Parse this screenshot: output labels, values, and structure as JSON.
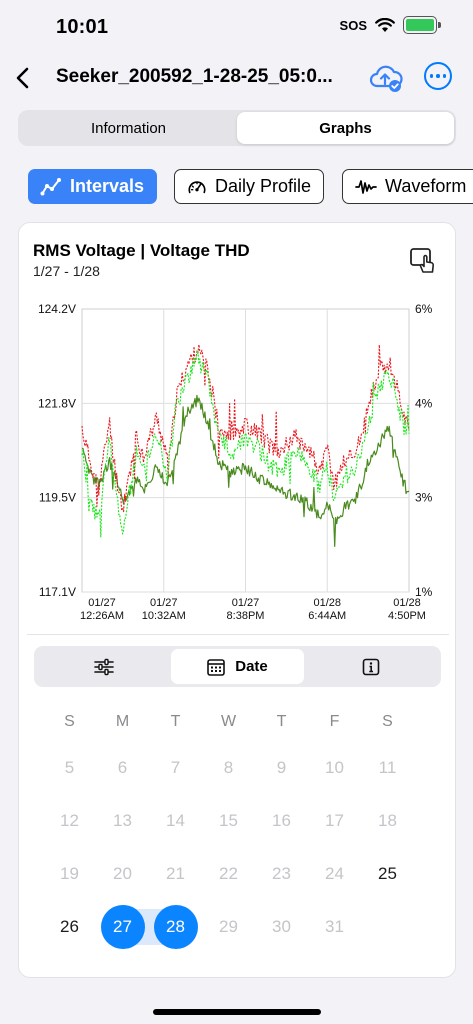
{
  "status": {
    "time": "10:01",
    "sos": "SOS"
  },
  "nav": {
    "title": "Seeker_200592_1-28-25_05:0..."
  },
  "segments": [
    {
      "label": "Information",
      "active": false
    },
    {
      "label": "Graphs",
      "active": true
    }
  ],
  "chips": [
    {
      "label": "Intervals",
      "active": true
    },
    {
      "label": "Daily Profile",
      "active": false
    },
    {
      "label": "Waveform",
      "active": false
    }
  ],
  "card": {
    "title": "RMS Voltage | Voltage THD",
    "subtitle": "1/27 - 1/28"
  },
  "chart_data": {
    "type": "line",
    "title": "RMS Voltage | Voltage THD",
    "subtitle": "1/27 - 1/28",
    "y_left_ticks": [
      "124.2V",
      "121.8V",
      "119.5V",
      "117.1V"
    ],
    "y_right_ticks": [
      "6%",
      "4%",
      "3%",
      "1%"
    ],
    "ylim_left": [
      117.1,
      124.2
    ],
    "ylim_right": [
      1,
      6
    ],
    "x_ticks": [
      {
        "line1": "01/27",
        "line2": "12:26AM"
      },
      {
        "line1": "01/27",
        "line2": "10:32AM"
      },
      {
        "line1": "01/27",
        "line2": "8:38PM"
      },
      {
        "line1": "01/28",
        "line2": "6:44AM"
      },
      {
        "line1": "01/28",
        "line2": "4:50PM"
      }
    ],
    "grid": true,
    "series_colors": {
      "red": "#e8151b",
      "bright_green": "#19e619",
      "olive": "#4a8a1e"
    },
    "series": [
      {
        "name": "",
        "color": "red",
        "axis": "left",
        "keypoints": [
          [
            0,
            121.2
          ],
          [
            2,
            120.5
          ],
          [
            5,
            119.7
          ],
          [
            8,
            121.4
          ],
          [
            10,
            120.0
          ],
          [
            12,
            119.2
          ],
          [
            16,
            121.0
          ],
          [
            18,
            120.5
          ],
          [
            22,
            121.5
          ],
          [
            25,
            120.4
          ],
          [
            28,
            122.1
          ],
          [
            31,
            122.8
          ],
          [
            34,
            123.2
          ],
          [
            37,
            122.6
          ],
          [
            40,
            121.3
          ],
          [
            44,
            121.0
          ],
          [
            48,
            121.3
          ],
          [
            52,
            121.1
          ],
          [
            55,
            120.8
          ],
          [
            58,
            120.6
          ],
          [
            62,
            121.0
          ],
          [
            66,
            120.8
          ],
          [
            70,
            120.1
          ],
          [
            72,
            120.7
          ],
          [
            74,
            119.8
          ],
          [
            77,
            120.4
          ],
          [
            80,
            120.6
          ],
          [
            82,
            121.0
          ],
          [
            84,
            121.7
          ],
          [
            87,
            122.6
          ],
          [
            90,
            122.9
          ],
          [
            92,
            122.4
          ],
          [
            94,
            121.7
          ],
          [
            96,
            121.2
          ]
        ]
      },
      {
        "name": "",
        "color": "bright_green",
        "axis": "left",
        "keypoints": [
          [
            0,
            120.7
          ],
          [
            2,
            119.3
          ],
          [
            5,
            119.0
          ],
          [
            8,
            120.9
          ],
          [
            10,
            119.6
          ],
          [
            12,
            118.6
          ],
          [
            16,
            120.6
          ],
          [
            18,
            120.1
          ],
          [
            22,
            121.1
          ],
          [
            25,
            120.1
          ],
          [
            28,
            121.8
          ],
          [
            31,
            122.5
          ],
          [
            34,
            123.0
          ],
          [
            37,
            122.4
          ],
          [
            40,
            121.0
          ],
          [
            44,
            120.6
          ],
          [
            48,
            121.0
          ],
          [
            52,
            120.7
          ],
          [
            55,
            120.3
          ],
          [
            58,
            120.1
          ],
          [
            62,
            120.6
          ],
          [
            66,
            120.4
          ],
          [
            70,
            119.7
          ],
          [
            72,
            120.3
          ],
          [
            74,
            119.4
          ],
          [
            77,
            120.0
          ],
          [
            80,
            120.2
          ],
          [
            82,
            120.6
          ],
          [
            84,
            121.3
          ],
          [
            87,
            122.2
          ],
          [
            90,
            122.6
          ],
          [
            92,
            122.1
          ],
          [
            94,
            121.4
          ],
          [
            96,
            120.9
          ]
        ]
      },
      {
        "name": "",
        "color": "olive",
        "axis": "right",
        "keypoints": [
          [
            0,
            3.5
          ],
          [
            2,
            3.1
          ],
          [
            5,
            2.9
          ],
          [
            8,
            3.3
          ],
          [
            10,
            3.0
          ],
          [
            12,
            2.6
          ],
          [
            16,
            3.0
          ],
          [
            18,
            2.8
          ],
          [
            22,
            3.2
          ],
          [
            25,
            2.9
          ],
          [
            28,
            3.5
          ],
          [
            31,
            4.2
          ],
          [
            34,
            4.4
          ],
          [
            37,
            4.0
          ],
          [
            40,
            3.3
          ],
          [
            44,
            3.1
          ],
          [
            48,
            3.2
          ],
          [
            52,
            3.0
          ],
          [
            55,
            2.9
          ],
          [
            58,
            2.8
          ],
          [
            62,
            2.7
          ],
          [
            66,
            2.6
          ],
          [
            70,
            2.3
          ],
          [
            72,
            2.6
          ],
          [
            74,
            2.2
          ],
          [
            77,
            2.5
          ],
          [
            80,
            2.6
          ],
          [
            82,
            2.9
          ],
          [
            84,
            3.3
          ],
          [
            87,
            3.6
          ],
          [
            90,
            3.9
          ],
          [
            92,
            3.5
          ],
          [
            94,
            3.0
          ],
          [
            96,
            2.7
          ]
        ]
      }
    ]
  },
  "tools": [
    {
      "icon": "sliders-icon",
      "label": "",
      "active": false
    },
    {
      "icon": "calendar-icon",
      "label": "Date",
      "active": true
    },
    {
      "icon": "info-icon",
      "label": "",
      "active": false
    }
  ],
  "calendar": {
    "weekdays": [
      "S",
      "M",
      "T",
      "W",
      "T",
      "F",
      "S"
    ],
    "weeks": [
      [
        {
          "d": "5",
          "s": "disabled"
        },
        {
          "d": "6",
          "s": "disabled"
        },
        {
          "d": "7",
          "s": "disabled"
        },
        {
          "d": "8",
          "s": "disabled"
        },
        {
          "d": "9",
          "s": "disabled"
        },
        {
          "d": "10",
          "s": "disabled"
        },
        {
          "d": "11",
          "s": "disabled"
        }
      ],
      [
        {
          "d": "12",
          "s": "disabled"
        },
        {
          "d": "13",
          "s": "disabled"
        },
        {
          "d": "14",
          "s": "disabled"
        },
        {
          "d": "15",
          "s": "disabled"
        },
        {
          "d": "16",
          "s": "disabled"
        },
        {
          "d": "17",
          "s": "disabled"
        },
        {
          "d": "18",
          "s": "disabled"
        }
      ],
      [
        {
          "d": "19",
          "s": "disabled"
        },
        {
          "d": "20",
          "s": "disabled"
        },
        {
          "d": "21",
          "s": "disabled"
        },
        {
          "d": "22",
          "s": "disabled"
        },
        {
          "d": "23",
          "s": "disabled"
        },
        {
          "d": "24",
          "s": "disabled"
        },
        {
          "d": "25",
          "s": "enabled"
        }
      ],
      [
        {
          "d": "26",
          "s": "enabled"
        },
        {
          "d": "27",
          "s": "selected"
        },
        {
          "d": "28",
          "s": "selected"
        },
        {
          "d": "29",
          "s": "disabled"
        },
        {
          "d": "30",
          "s": "disabled"
        },
        {
          "d": "31",
          "s": "disabled"
        },
        {
          "d": "",
          "s": "empty"
        }
      ]
    ]
  }
}
